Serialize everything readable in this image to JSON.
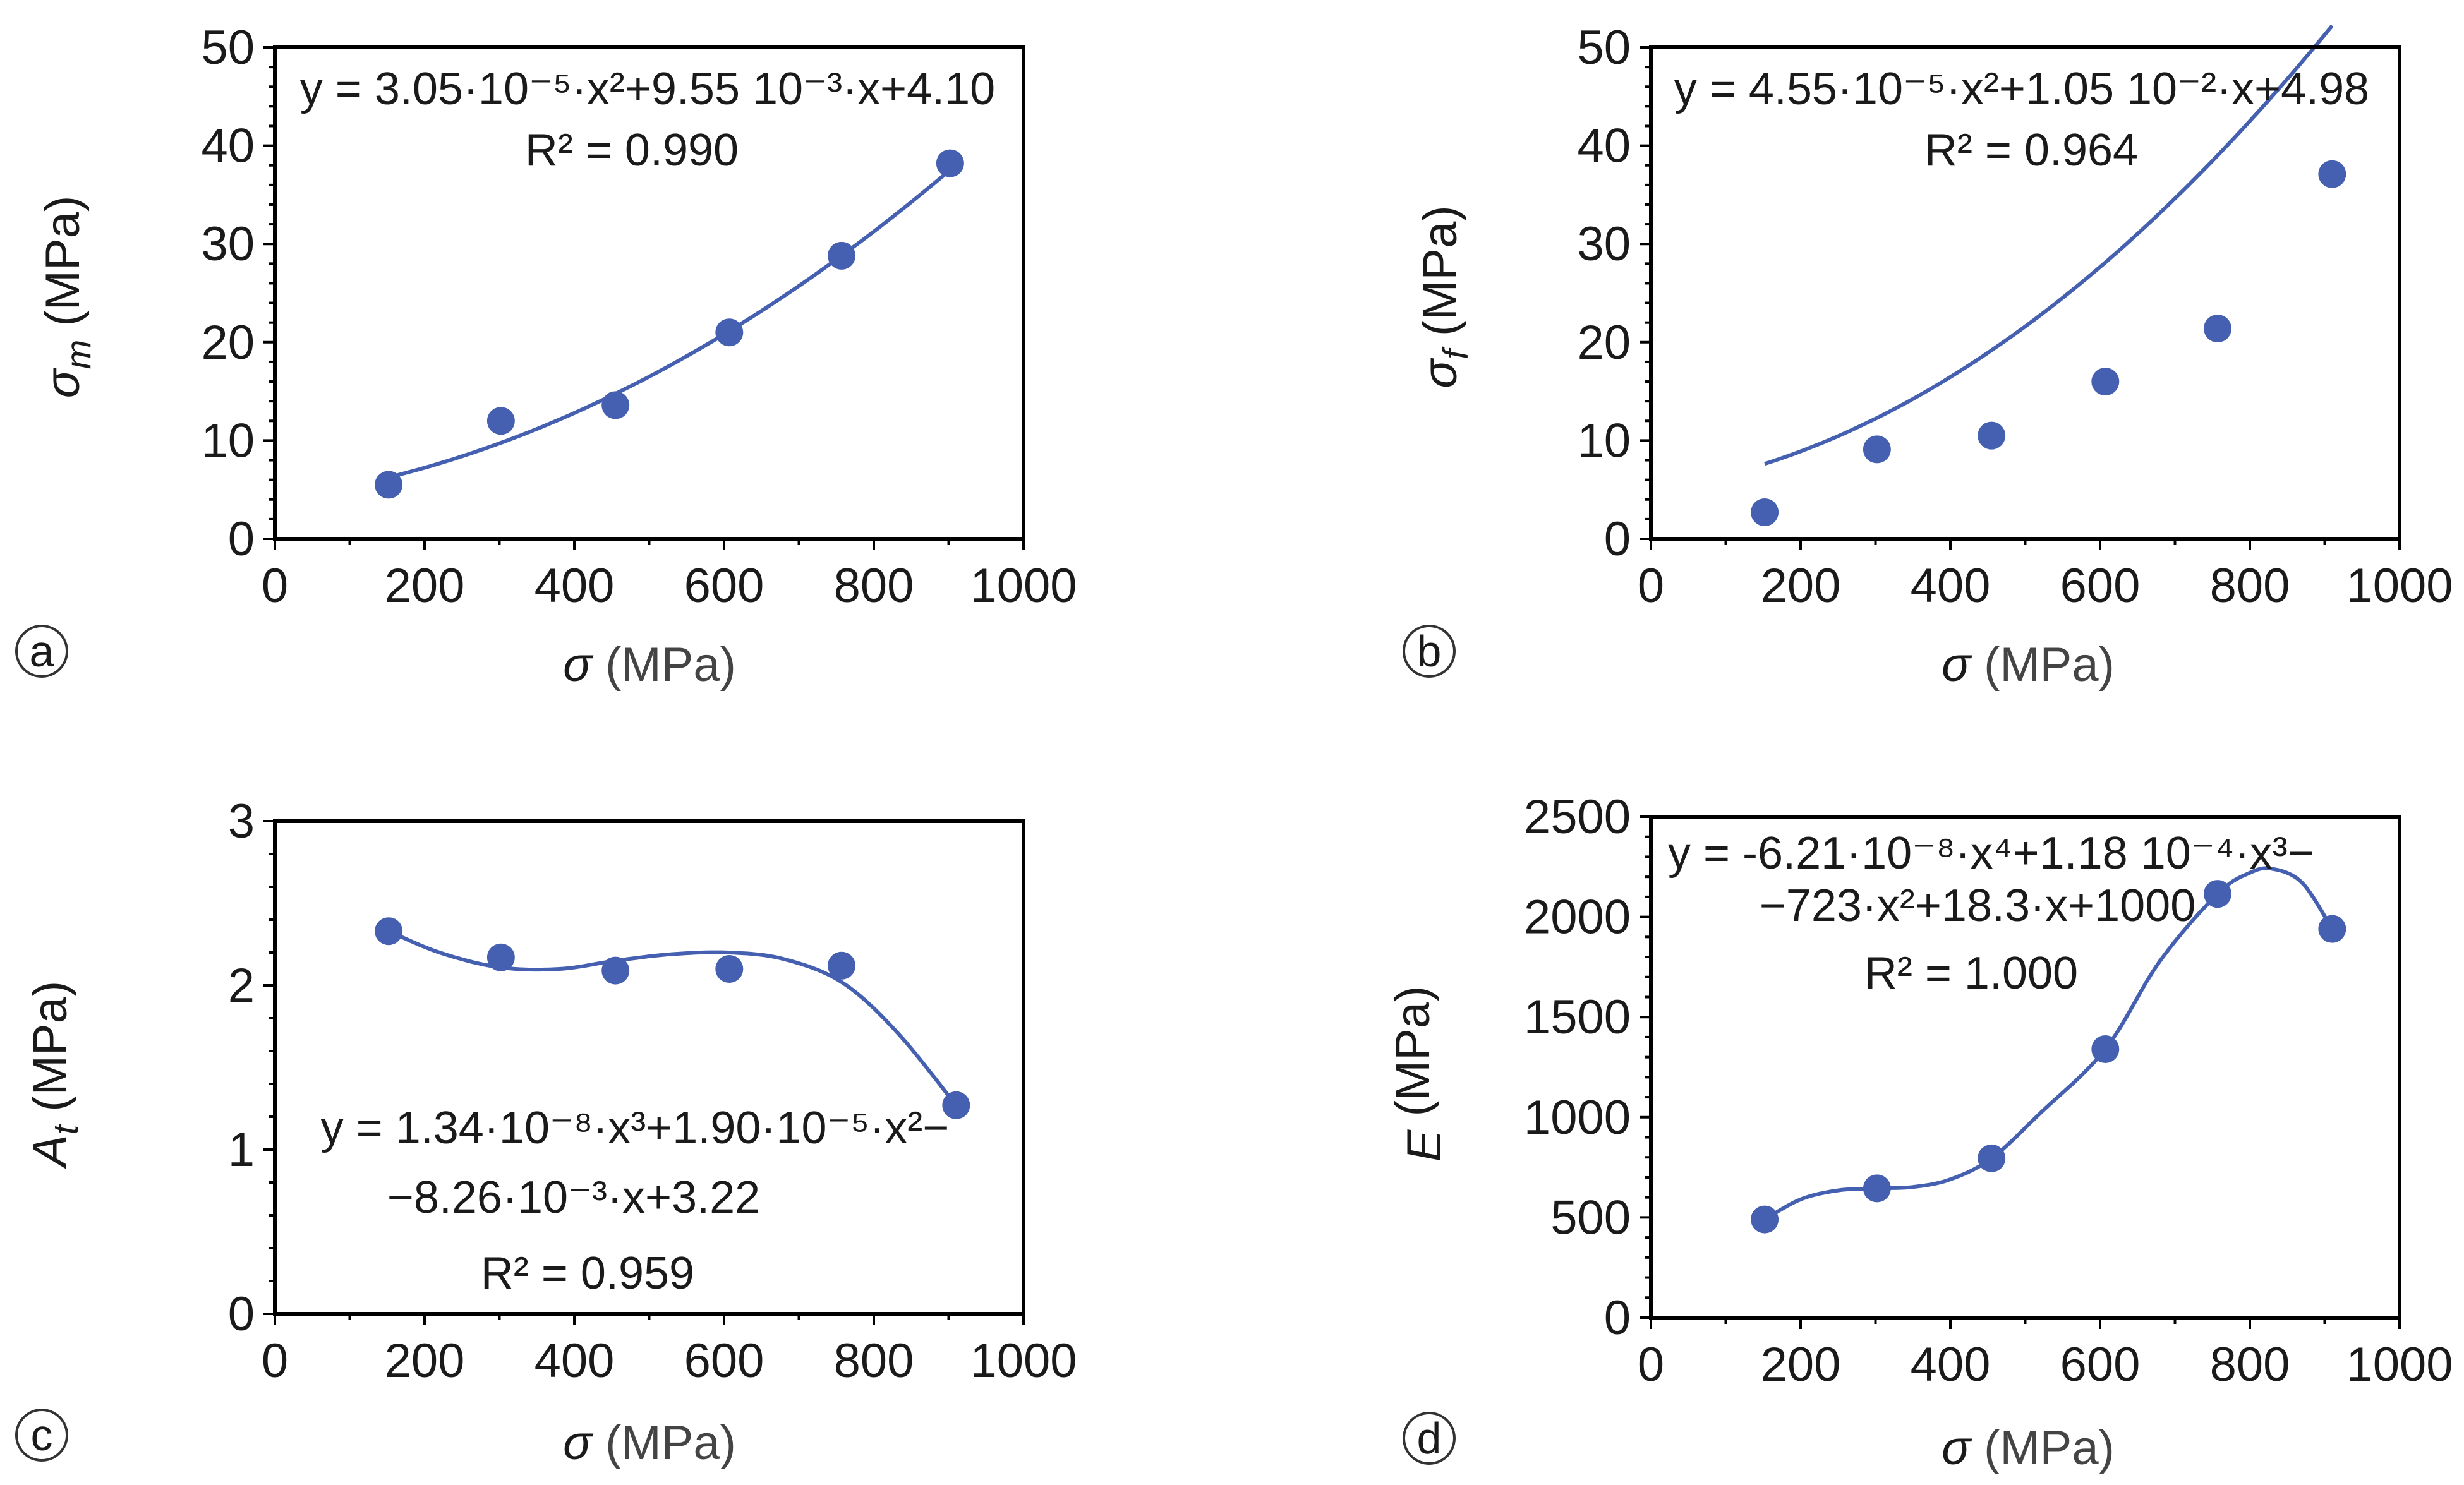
{
  "colors": {
    "series": "#4560b0",
    "axis": "#000000",
    "text": "#1a1a1a"
  },
  "chart_data": [
    {
      "type": "scatter",
      "panel": "a",
      "xlabel_sym": "σ",
      "xlabel_unit": " (MPa)",
      "ylabel_sym": "σ",
      "ylabel_sub": "m",
      "ylabel_unit": " (MPa)",
      "xlim": [
        0,
        1000
      ],
      "ylim": [
        0,
        50
      ],
      "xticks": [
        0,
        200,
        400,
        600,
        800,
        1000
      ],
      "yticks": [
        0,
        10,
        20,
        30,
        40,
        50
      ],
      "x": [
        152,
        302,
        455,
        607,
        757,
        902
      ],
      "y": [
        5.5,
        12,
        13.6,
        21,
        28.8,
        38.2
      ],
      "fit": {
        "type": "poly",
        "coef": [
          4.1,
          0.00955,
          3.05e-05
        ],
        "x_range": [
          152,
          902
        ]
      },
      "eq_lines": [
        "y = 3.05·10⁻⁵·x²+9.55 10⁻³·x+4.10",
        "R² = 0.990"
      ]
    },
    {
      "type": "scatter",
      "panel": "b",
      "xlabel_sym": "σ",
      "xlabel_unit": " (MPa)",
      "ylabel_sym": "σ",
      "ylabel_sub": "f",
      "ylabel_unit": " (MPa)",
      "xlim": [
        0,
        1000
      ],
      "ylim": [
        0,
        50
      ],
      "xticks": [
        0,
        200,
        400,
        600,
        800,
        1000
      ],
      "yticks": [
        0,
        10,
        20,
        30,
        40,
        50
      ],
      "x": [
        152,
        302,
        455,
        607,
        757,
        910
      ],
      "y": [
        2.7,
        9.1,
        10.5,
        16,
        21.4,
        37.1
      ],
      "fit": {
        "type": "poly",
        "coef": [
          4.98,
          0.0105,
          4.55e-05
        ],
        "x_range": [
          152,
          910
        ]
      },
      "eq_lines": [
        "y = 4.55·10⁻⁵·x²+1.05 10⁻²·x+4.98",
        "R² = 0.964"
      ]
    },
    {
      "type": "scatter",
      "panel": "c",
      "xlabel_sym": "σ",
      "xlabel_unit": " (MPa)",
      "ylabel_sym": "A",
      "ylabel_sub": "t",
      "ylabel_unit": " (MPa)",
      "xlim": [
        0,
        1000
      ],
      "ylim": [
        0,
        3
      ],
      "xticks": [
        0,
        200,
        400,
        600,
        800,
        1000
      ],
      "yticks": [
        0,
        1,
        2,
        3
      ],
      "x": [
        152,
        302,
        455,
        607,
        757,
        910
      ],
      "y": [
        2.33,
        2.17,
        2.09,
        2.1,
        2.12,
        1.27
      ],
      "fit": {
        "type": "points",
        "x": [
          152,
          220,
          300,
          380,
          455,
          530,
          607,
          680,
          757,
          830,
          910
        ],
        "y": [
          2.33,
          2.2,
          2.11,
          2.1,
          2.15,
          2.19,
          2.2,
          2.16,
          2.02,
          1.72,
          1.27
        ]
      },
      "eq_lines": [
        "y = 1.34·10⁻⁸·x³+1.90·10⁻⁵·x²−",
        "−8.26·10⁻³·x+3.22",
        "R² = 0.959"
      ]
    },
    {
      "type": "scatter",
      "panel": "d",
      "xlabel_sym": "σ",
      "xlabel_unit": " (MPa)",
      "ylabel_sym": "E",
      "ylabel_sub": "",
      "ylabel_unit": " (MPa)",
      "xlim": [
        0,
        1000
      ],
      "ylim": [
        0,
        2500
      ],
      "xticks": [
        0,
        200,
        400,
        600,
        800,
        1000
      ],
      "yticks": [
        0,
        500,
        1000,
        1500,
        2000,
        2500
      ],
      "x": [
        152,
        302,
        455,
        607,
        757,
        910
      ],
      "y": [
        490,
        645,
        795,
        1340,
        2115,
        1940
      ],
      "fit": {
        "type": "points",
        "x": [
          152,
          200,
          250,
          302,
          350,
          400,
          455,
          520,
          607,
          680,
          757,
          800,
          830,
          870,
          910
        ],
        "y": [
          490,
          590,
          635,
          645,
          652,
          690,
          795,
          1020,
          1340,
          1780,
          2115,
          2220,
          2240,
          2170,
          1940
        ]
      },
      "eq_lines": [
        "y = -6.21·10⁻⁸·x⁴+1.18 10⁻⁴·x³−",
        "−723·x²+18.3·x+1000",
        "R² = 1.000"
      ]
    }
  ]
}
